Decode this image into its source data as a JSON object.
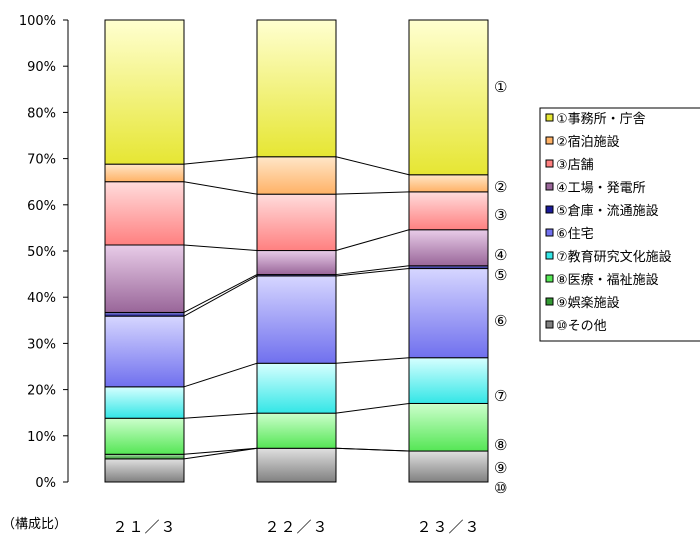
{
  "chart_data": {
    "type": "bar",
    "stacked": true,
    "normalized": true,
    "categories": [
      "２１／３",
      "２２／３",
      "２３／３"
    ],
    "ylabel": "（構成比）",
    "ylim": [
      0,
      100
    ],
    "yticks": [
      "0%",
      "10%",
      "20%",
      "30%",
      "40%",
      "50%",
      "60%",
      "70%",
      "80%",
      "90%",
      "100%"
    ],
    "grid": false,
    "legend_position": "right",
    "series": [
      {
        "name": "⑩その他",
        "values": [
          5.0,
          7.3,
          6.7
        ],
        "color": "#808080",
        "top": "#e0e0e0"
      },
      {
        "name": "⑨娯楽施設",
        "values": [
          1.0,
          0.0,
          0.0
        ],
        "color": "#339933",
        "top": "#aee0ae"
      },
      {
        "name": "⑧医療・福祉施設",
        "values": [
          7.8,
          7.6,
          10.3
        ],
        "color": "#55e655",
        "top": "#ccffcc"
      },
      {
        "name": "⑦教育研究文化施設",
        "values": [
          6.8,
          10.8,
          9.9
        ],
        "color": "#33e6e6",
        "top": "#d6ffff"
      },
      {
        "name": "⑥住宅",
        "values": [
          15.3,
          18.9,
          19.3
        ],
        "color": "#7070ee",
        "top": "#d6d6ff"
      },
      {
        "name": "⑤倉庫・流通施設",
        "values": [
          0.8,
          0.3,
          0.6
        ],
        "color": "#1a1a99",
        "top": "#8888cc"
      },
      {
        "name": "④工場・発電所",
        "values": [
          14.6,
          5.2,
          7.8
        ],
        "color": "#996699",
        "top": "#e8cce8"
      },
      {
        "name": "③店舗",
        "values": [
          13.7,
          12.2,
          8.2
        ],
        "color": "#ff8080",
        "top": "#ffdcdc"
      },
      {
        "name": "②宿泊施設",
        "values": [
          3.8,
          8.1,
          3.7
        ],
        "color": "#ffb266",
        "top": "#ffe6c8"
      },
      {
        "name": "①事務所・庁舎",
        "values": [
          31.2,
          29.6,
          33.5
        ],
        "color": "#e6e633",
        "top": "#ffffd0"
      }
    ],
    "right_labels": [
      "①",
      "②",
      "③",
      "④",
      "⑤",
      "⑥",
      "⑦",
      "⑧",
      "⑨",
      "⑩"
    ]
  }
}
